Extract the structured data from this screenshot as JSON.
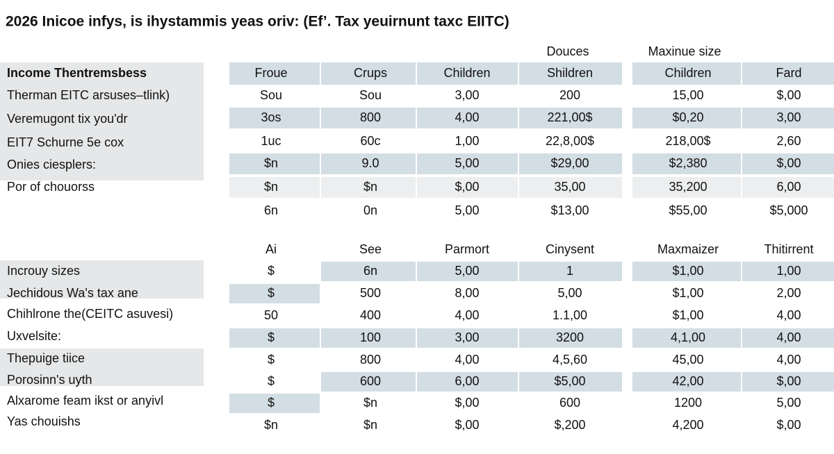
{
  "title": "2026 Inicoe infys, is ihystammis yeas oriv: (Ef’. Tax yeuirnunt taxc EIITC)",
  "top": {
    "group_headers": [
      "Douces",
      "Maxinue size"
    ],
    "headers": [
      "Froue",
      "Crups",
      "Children",
      "Shildren",
      "Children",
      "Fard"
    ],
    "labels": [
      "Income Thentremsbess",
      "Therman EITC arsuses–tlink)",
      "Veremugont tix you'dr",
      "EIT7 Schurne 5e cox",
      "Onies ciesplers:",
      "Por of chouorss"
    ],
    "rows": [
      [
        "Sou",
        "Sou",
        "3,00",
        "200",
        "15,00",
        "$,00"
      ],
      [
        "3os",
        "800",
        "4,00",
        "221,00$",
        "$0,20",
        "3,00"
      ],
      [
        "1uc",
        "60c",
        "1,00",
        "22,8,00$",
        "218,00$",
        "2,60"
      ],
      [
        "$n",
        "9.0",
        "5,00",
        "$29,00",
        "$2,380",
        "$,00"
      ],
      [
        "$n",
        "$n",
        "$,00",
        "35,00",
        "35,200",
        "6,00"
      ],
      [
        "6n",
        "0n",
        "5,00",
        "$13,00",
        "$55,00",
        "$5,000"
      ]
    ]
  },
  "bottom": {
    "headers": [
      "Ai",
      "See",
      "Parmort",
      "Cinysent",
      "Maxmaizer",
      "Thitirrent"
    ],
    "labels": [
      "Incrouy sizes",
      "Jechidous Wa's tax ane",
      "Chihlrone the(CEITC asuvesi)",
      "Uxvelsite:",
      "Thepuige tiice",
      "Porosinn's uyth",
      "Alxarome feam ikst or anyivl",
      "Yas chouishs"
    ],
    "rows": [
      [
        "$",
        "6n",
        "5,00",
        "1",
        "$1,00",
        "1,00"
      ],
      [
        "$",
        "500",
        "8,00",
        "5,00",
        "$1,00",
        "2,00"
      ],
      [
        "50",
        "400",
        "4,00",
        "1.1,00",
        "$1,00",
        "4,00"
      ],
      [
        "$",
        "100",
        "3,00",
        "3200",
        "4,1,00",
        "4,00"
      ],
      [
        "$",
        "800",
        "4,00",
        "4,5,60",
        "45,00",
        "4,00"
      ],
      [
        "$",
        "600",
        "6,00",
        "$5,00",
        "42,00",
        "$,00"
      ],
      [
        "$",
        "$n",
        "$,00",
        "600",
        "1200",
        "5,00"
      ],
      [
        "$n",
        "$n",
        "$,00",
        "$,200",
        "4,200",
        "$,00"
      ]
    ]
  }
}
